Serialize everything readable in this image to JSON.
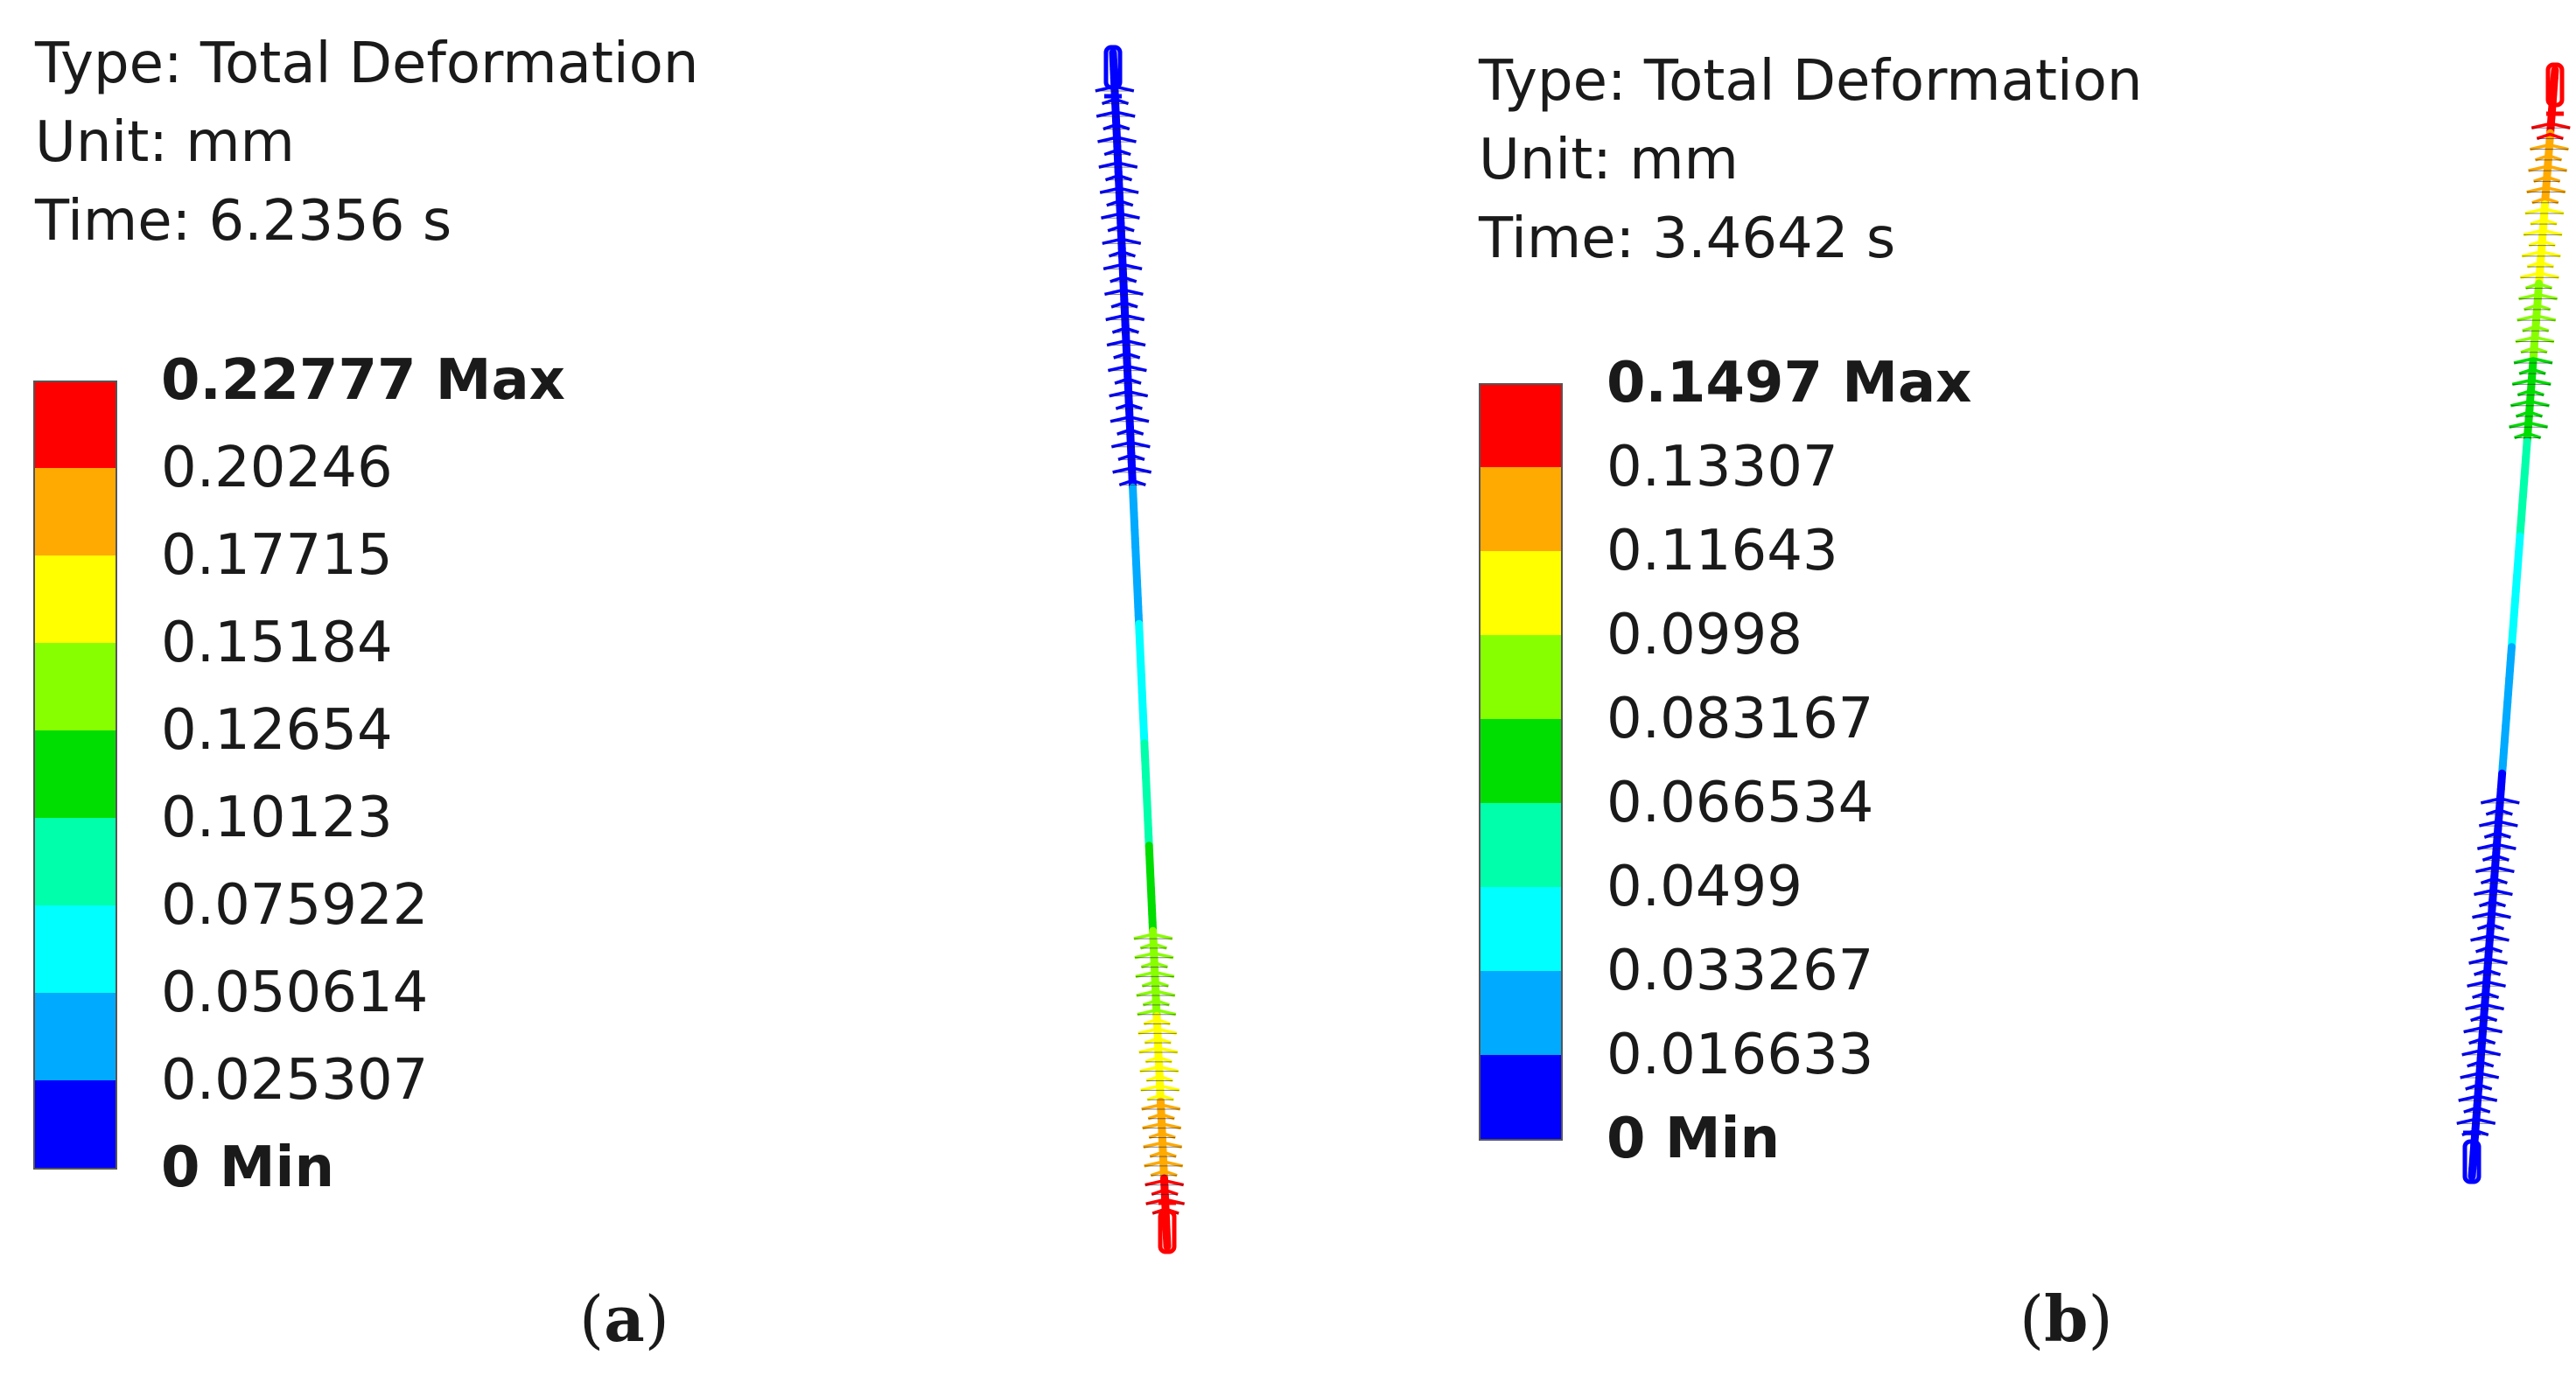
{
  "panels": [
    {
      "id": "a",
      "info": {
        "type": "Type: Total Deformation",
        "unit": "Unit: mm",
        "time": "Time: 6.2356 s"
      },
      "legend": {
        "labels": [
          "0.22777 Max",
          "0.20246",
          "0.17715",
          "0.15184",
          "0.12654",
          "0.10123",
          "0.075922",
          "0.050614",
          "0.025307",
          "0 Min"
        ],
        "colors": [
          "#ff0000",
          "#ffaa00",
          "#ffff00",
          "#88ff00",
          "#00dd00",
          "#00ffaa",
          "#00ffff",
          "#00aaff",
          "#0000ff"
        ]
      },
      "caption": {
        "open": "(",
        "letter": "a",
        "close": ")"
      }
    },
    {
      "id": "b",
      "info": {
        "type": "Type: Total Deformation",
        "unit": "Unit: mm",
        "time": "Time: 3.4642 s"
      },
      "legend": {
        "labels": [
          "0.1497 Max",
          "0.13307",
          "0.11643",
          "0.0998",
          "0.083167",
          "0.066534",
          "0.0499",
          "0.033267",
          "0.016633",
          "0 Min"
        ],
        "colors": [
          "#ff0000",
          "#ffaa00",
          "#ffff00",
          "#88ff00",
          "#00dd00",
          "#00ffaa",
          "#00ffff",
          "#00aaff",
          "#0000ff"
        ]
      },
      "caption": {
        "open": "(",
        "letter": "b",
        "close": ")"
      }
    }
  ]
}
